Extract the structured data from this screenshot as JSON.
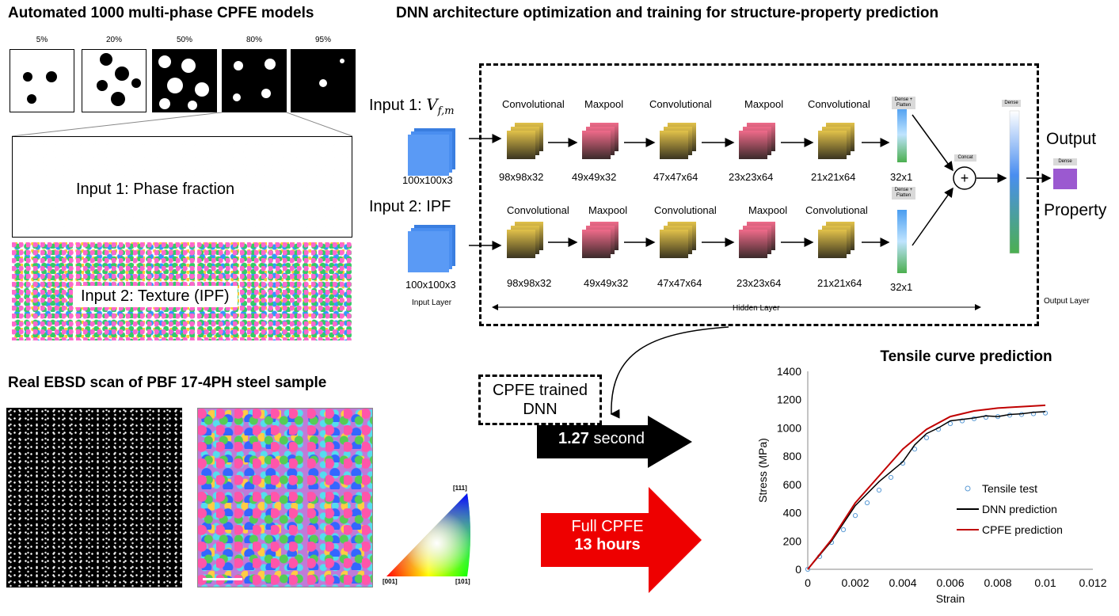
{
  "left_top": {
    "title": "Automated 1000 multi-phase CPFE models",
    "fractions": [
      "5%",
      "20%",
      "50%",
      "80%",
      "95%"
    ],
    "input1_label": "Input 1: Phase fraction",
    "input2_label": "Input 2: Texture (IPF)"
  },
  "dnn": {
    "title": "DNN architecture optimization and training for structure-property prediction",
    "input1_prefix": "Input 1: ",
    "input1_var": "V",
    "input1_sub": "f,m",
    "input2_label": "Input 2: IPF",
    "input_size": "100x100x3",
    "input_layer": "Input Layer",
    "hidden_layer": "Hidden Layer",
    "output_layer": "Output Layer",
    "output_label": "Output",
    "property_label": "Property",
    "dense_flatten": "Dense + Flatten",
    "concat": "Concat",
    "dense": "Dense",
    "row1": [
      {
        "name": "Convolutional",
        "size": "98x98x32"
      },
      {
        "name": "Maxpool",
        "size": "49x49x32"
      },
      {
        "name": "Convolutional",
        "size": "47x47x64"
      },
      {
        "name": "Maxpool",
        "size": "23x23x64"
      },
      {
        "name": "Convolutional",
        "size": "21x21x64"
      }
    ],
    "row2": [
      {
        "name": "Convolutional",
        "size": "98x98x32"
      },
      {
        "name": "Maxpool",
        "size": "49x49x32"
      },
      {
        "name": "Convolutional",
        "size": "47x47x64"
      },
      {
        "name": "Maxpool",
        "size": "23x23x64"
      },
      {
        "name": "Convolutional",
        "size": "21x21x64"
      }
    ],
    "flat_size": "32x1"
  },
  "ebsd": {
    "title": "Real EBSD scan of PBF 17-4PH steel sample",
    "ipf_111": "[111]",
    "ipf_001": "[001]",
    "ipf_101": "[101]"
  },
  "speed": {
    "trained_label": "CPFE trained DNN",
    "dnn_time_value": "1.27",
    "dnn_time_unit": " second",
    "full_line1": "Full CPFE",
    "full_line2": "13 hours"
  },
  "chart_data": {
    "type": "line",
    "title": "Tensile curve prediction",
    "xlabel": "Strain",
    "ylabel": "Stress (MPa)",
    "xlim": [
      0,
      0.012
    ],
    "ylim": [
      0,
      1400
    ],
    "xticks": [
      "0",
      "0.002",
      "0.004",
      "0.006",
      "0.008",
      "0.01",
      "0.012"
    ],
    "yticks": [
      "0",
      "200",
      "400",
      "600",
      "800",
      "1000",
      "1200",
      "1400"
    ],
    "legend_position": "bottom-right",
    "series": [
      {
        "name": "Tensile test",
        "style": "circles",
        "color": "#5b9bd5",
        "points": [
          [
            0,
            0
          ],
          [
            0.0005,
            90
          ],
          [
            0.001,
            190
          ],
          [
            0.0015,
            280
          ],
          [
            0.002,
            380
          ],
          [
            0.0025,
            470
          ],
          [
            0.003,
            560
          ],
          [
            0.0035,
            650
          ],
          [
            0.004,
            750
          ],
          [
            0.0045,
            850
          ],
          [
            0.005,
            930
          ],
          [
            0.0055,
            990
          ],
          [
            0.006,
            1030
          ],
          [
            0.0065,
            1050
          ],
          [
            0.007,
            1065
          ],
          [
            0.0075,
            1075
          ],
          [
            0.008,
            1080
          ],
          [
            0.0085,
            1090
          ],
          [
            0.009,
            1095
          ],
          [
            0.0095,
            1100
          ],
          [
            0.01,
            1105
          ]
        ]
      },
      {
        "name": "DNN prediction",
        "style": "line",
        "color": "#000000",
        "points": [
          [
            0,
            0
          ],
          [
            0.001,
            200
          ],
          [
            0.002,
            450
          ],
          [
            0.003,
            620
          ],
          [
            0.0035,
            690
          ],
          [
            0.004,
            760
          ],
          [
            0.0045,
            880
          ],
          [
            0.005,
            960
          ],
          [
            0.0055,
            1000
          ],
          [
            0.006,
            1050
          ],
          [
            0.0065,
            1060
          ],
          [
            0.007,
            1070
          ],
          [
            0.0075,
            1085
          ],
          [
            0.008,
            1080
          ],
          [
            0.0085,
            1095
          ],
          [
            0.009,
            1100
          ],
          [
            0.0095,
            1110
          ],
          [
            0.01,
            1115
          ]
        ]
      },
      {
        "name": "CPFE prediction",
        "style": "line",
        "color": "#c00000",
        "points": [
          [
            0,
            0
          ],
          [
            0.001,
            210
          ],
          [
            0.002,
            470
          ],
          [
            0.003,
            660
          ],
          [
            0.004,
            850
          ],
          [
            0.005,
            990
          ],
          [
            0.006,
            1080
          ],
          [
            0.007,
            1120
          ],
          [
            0.008,
            1140
          ],
          [
            0.009,
            1150
          ],
          [
            0.01,
            1160
          ]
        ]
      }
    ]
  }
}
